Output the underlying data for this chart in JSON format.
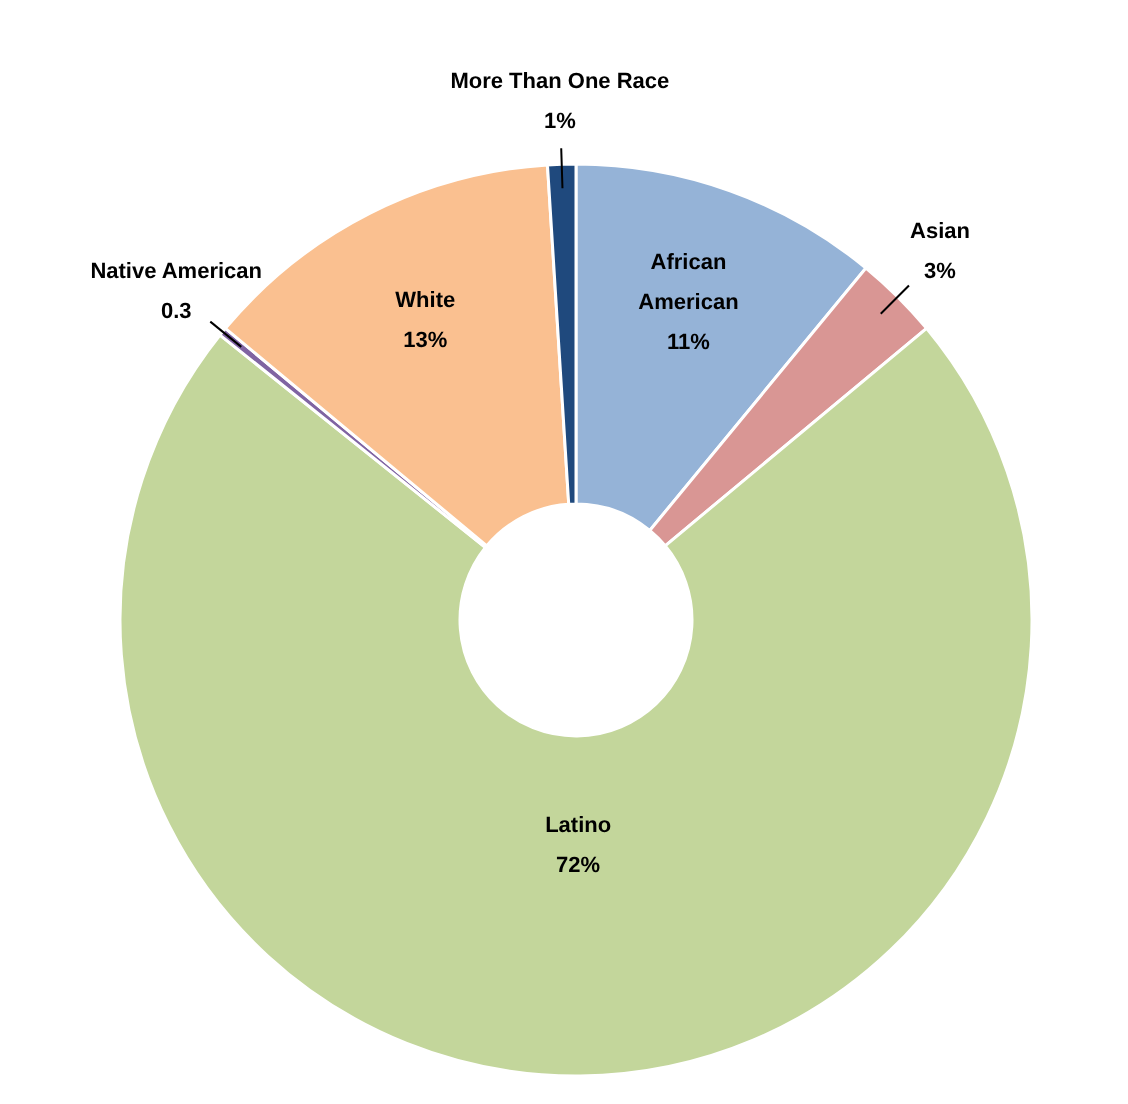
{
  "chart_data": {
    "type": "donut",
    "categories": [
      "African American",
      "Asian",
      "Latino",
      "Native American",
      "White",
      "More Than One Race"
    ],
    "values": [
      11,
      3,
      72,
      0.3,
      13,
      1
    ],
    "value_labels": [
      "11%",
      "3%",
      "72%",
      "0.3",
      "13%",
      "1%"
    ],
    "colors": [
      "#95b3d7",
      "#d99694",
      "#c3d69b",
      "#8064a2",
      "#fac090",
      "#1f497d"
    ],
    "legend": false
  }
}
